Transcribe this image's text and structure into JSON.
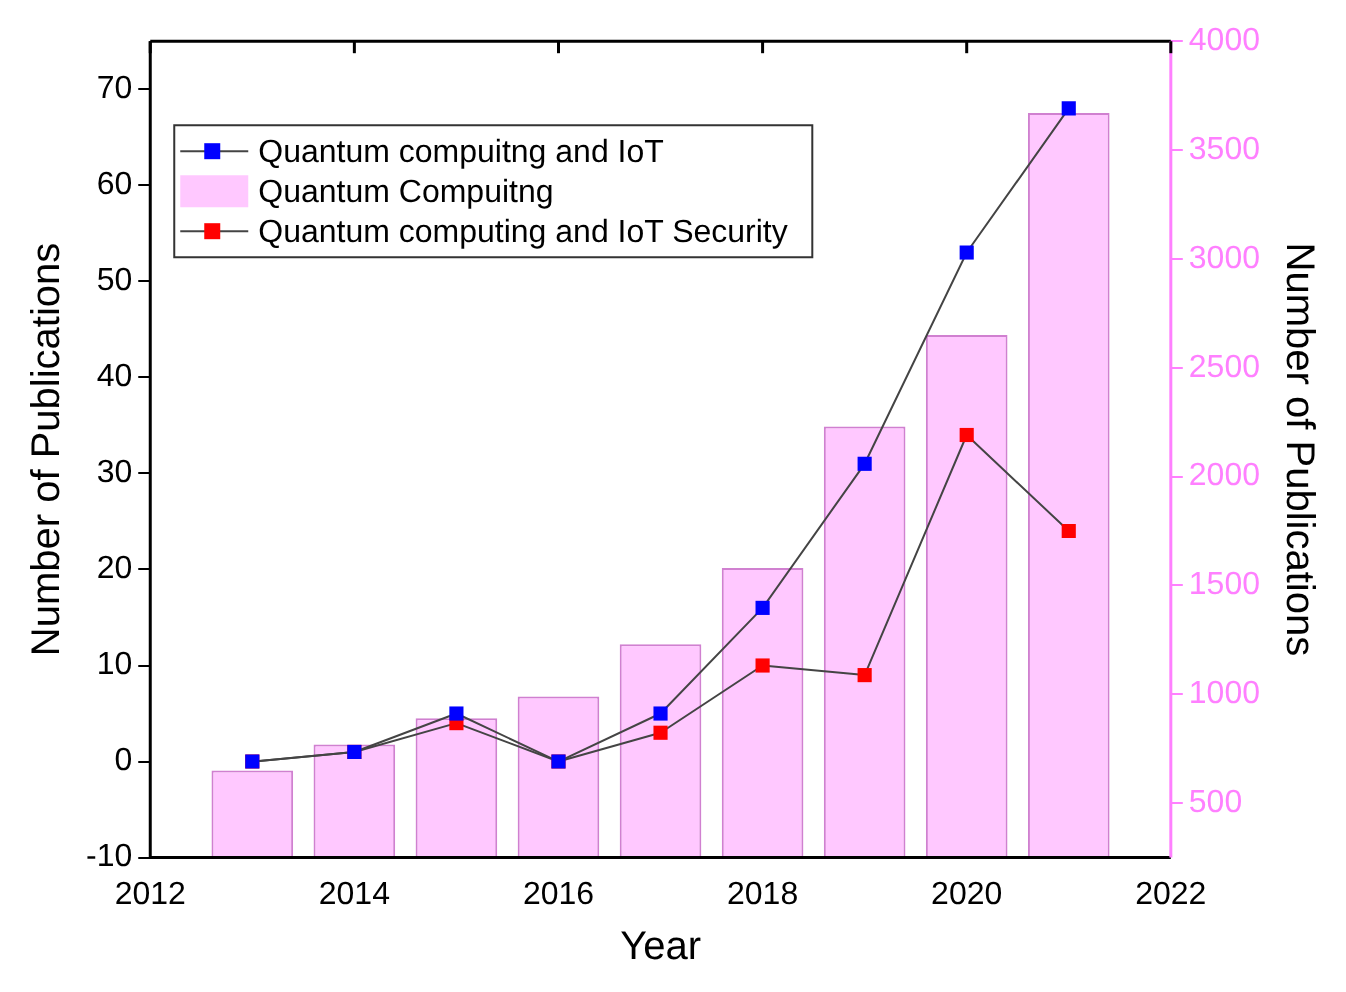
{
  "chart_data": {
    "type": "bar",
    "xlabel": "Year",
    "ylabel": "Number of Publications",
    "y2label": "Number of Publications",
    "x": [
      2013,
      2014,
      2015,
      2016,
      2017,
      2018,
      2019,
      2020,
      2021
    ],
    "xlim": [
      2012,
      2022
    ],
    "xticks": [
      2012,
      2014,
      2016,
      2018,
      2020,
      2022
    ],
    "ylim": [
      -10,
      75
    ],
    "yticks": [
      -10,
      0,
      10,
      20,
      30,
      40,
      50,
      60,
      70
    ],
    "y2lim": [
      250,
      4000
    ],
    "y2ticks": [
      500,
      1000,
      1500,
      2000,
      2500,
      3000,
      3500,
      4000
    ],
    "legend": "top left",
    "marker": "square",
    "grid": false,
    "series": [
      {
        "name": "Quantum compuitng and IoT",
        "type": "line",
        "color": "#0000ff",
        "values": [
          0,
          1,
          5,
          0,
          5,
          16,
          31,
          53,
          68
        ]
      },
      {
        "name": "Quantum Compuitng",
        "axis": "y2",
        "color": "#ffc8ff",
        "values": [
          650,
          770,
          890,
          990,
          1230,
          1580,
          2230,
          2650,
          3670
        ]
      },
      {
        "name": "Quantum computing and IoT Security",
        "type": "line",
        "color": "#ff0000",
        "values": [
          0,
          1,
          4,
          0,
          3,
          10,
          9,
          34,
          24
        ]
      }
    ]
  }
}
